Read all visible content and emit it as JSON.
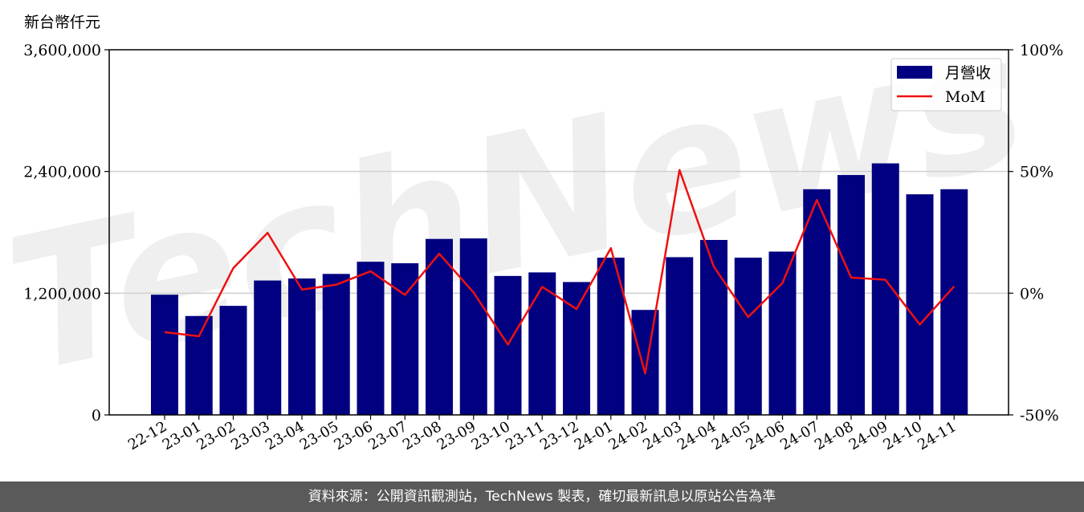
{
  "chart_data": {
    "type": "bar",
    "y_unit_label": "新台幣仟元",
    "categories": [
      "22-12",
      "23-01",
      "23-02",
      "23-03",
      "23-04",
      "23-05",
      "23-06",
      "23-07",
      "23-08",
      "23-09",
      "23-10",
      "23-11",
      "23-12",
      "24-01",
      "24-02",
      "24-03",
      "24-04",
      "24-05",
      "24-06",
      "24-07",
      "24-08",
      "24-09",
      "24-10",
      "24-11"
    ],
    "series": [
      {
        "name": "月營收",
        "type": "bar",
        "color": "#000080",
        "axis": "left",
        "values": [
          1185000,
          975000,
          1075000,
          1325000,
          1345000,
          1390000,
          1510000,
          1495000,
          1735000,
          1740000,
          1370000,
          1405000,
          1310000,
          1550000,
          1035000,
          1555000,
          1725000,
          1550000,
          1610000,
          2225000,
          2365000,
          2480000,
          2175000,
          2225000
        ]
      },
      {
        "name": "MoM",
        "type": "line",
        "color": "#ee1111",
        "axis": "right",
        "values": [
          -16.0,
          -17.7,
          10.3,
          24.8,
          1.5,
          3.5,
          9.0,
          -0.7,
          16.2,
          0.3,
          -21.1,
          2.6,
          -6.5,
          18.5,
          -33.0,
          50.6,
          10.9,
          -9.8,
          4.2,
          38.3,
          6.4,
          5.5,
          -12.9,
          2.8
        ]
      }
    ],
    "y_left": {
      "min": 0,
      "max": 3600000,
      "ticks": [
        "0",
        "1,200,000",
        "2,400,000",
        "3,600,000"
      ],
      "tick_values": [
        0,
        1200000,
        2400000,
        3600000
      ]
    },
    "y_right": {
      "min": -50,
      "max": 100,
      "ticks": [
        "-50%",
        "0%",
        "50%",
        "100%"
      ],
      "tick_values": [
        -50,
        0,
        50,
        100
      ]
    },
    "grid": "horizontal",
    "legend": {
      "placement": "top-right",
      "items": [
        {
          "label": "月營收",
          "kind": "bar",
          "color": "#000080"
        },
        {
          "label": "MoM",
          "kind": "line",
          "color": "#ee1111"
        }
      ]
    }
  },
  "watermark": {
    "text": "TechNews"
  },
  "footer": {
    "source_text": "資料來源：公開資訊觀測站，TechNews 製表，確切最新訊息以原站公告為準"
  }
}
